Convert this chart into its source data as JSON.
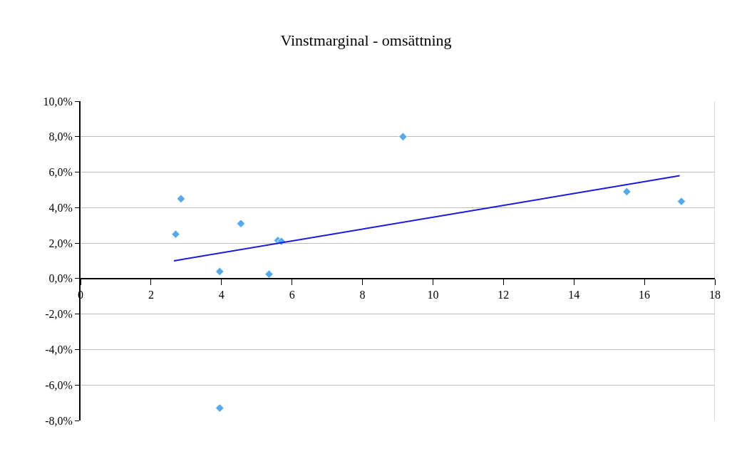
{
  "chart_data": {
    "type": "scatter",
    "title": "Vinstmarginal - omsättning",
    "xlim": [
      0,
      18
    ],
    "xticks": [
      0,
      2,
      4,
      6,
      8,
      10,
      12,
      14,
      16,
      18
    ],
    "ylim": [
      -8,
      10
    ],
    "yticks": [
      {
        "value": -8,
        "label": "-8,0%"
      },
      {
        "value": -6,
        "label": "-6,0%"
      },
      {
        "value": -4,
        "label": "-4,0%"
      },
      {
        "value": -2,
        "label": "-2,0%"
      },
      {
        "value": 0,
        "label": "0,0%"
      },
      {
        "value": 2,
        "label": "2,0%"
      },
      {
        "value": 4,
        "label": "4,0%"
      },
      {
        "value": 6,
        "label": "6,0%"
      },
      {
        "value": 8,
        "label": "8,0%"
      },
      {
        "value": 10,
        "label": "10,0%"
      }
    ],
    "grid": "y",
    "series": [
      {
        "marker": "diamond",
        "color": "#55aaee",
        "x": [
          2.7,
          2.85,
          3.95,
          3.95,
          4.55,
          5.35,
          5.6,
          5.7,
          9.15,
          15.5,
          17.05
        ],
        "values": [
          2.5,
          4.5,
          0.4,
          -7.3,
          3.1,
          0.25,
          2.15,
          2.1,
          8.0,
          4.9,
          4.35
        ]
      },
      {
        "type": "line",
        "marker": "none",
        "line_style": "solid",
        "color": "#1a1ade",
        "x": [
          2.65,
          17.0
        ],
        "values": [
          1.0,
          5.8
        ]
      }
    ]
  }
}
